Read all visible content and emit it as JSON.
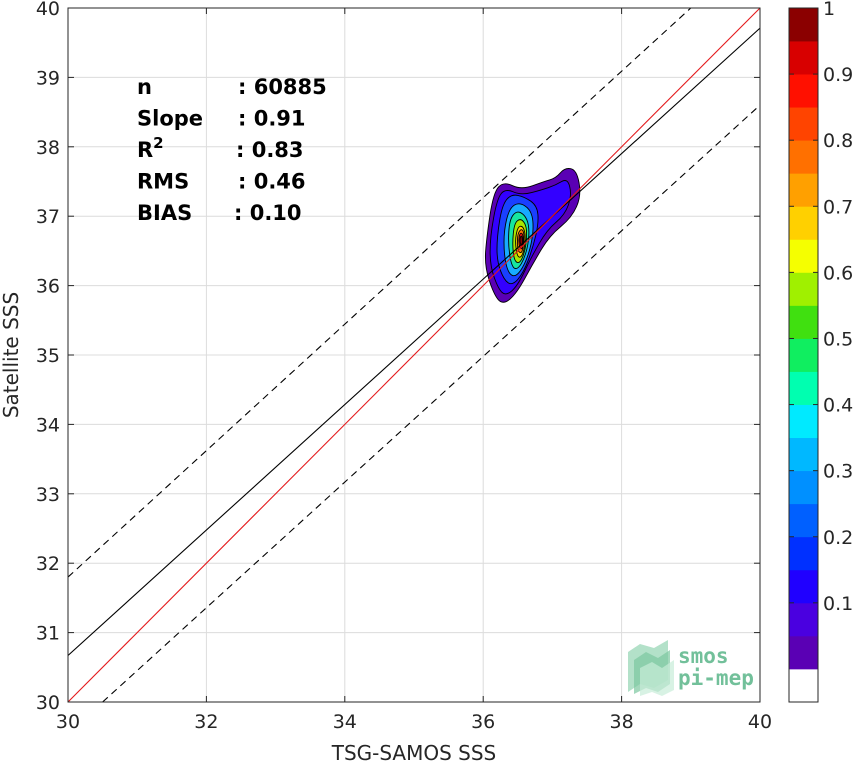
{
  "chart_data": {
    "type": "scatter",
    "subtype": "density-contour",
    "xlabel": "TSG-SAMOS SSS",
    "ylabel": "Satellite SSS",
    "xlim": [
      30,
      40
    ],
    "ylim": [
      30,
      40
    ],
    "xticks": [
      30,
      32,
      34,
      36,
      38,
      40
    ],
    "yticks": [
      30,
      31,
      32,
      33,
      34,
      35,
      36,
      37,
      38,
      39,
      40
    ],
    "grid": true,
    "stats": [
      {
        "label": "n",
        "value": ": 60885"
      },
      {
        "label": "Slope",
        "value": ": 0.91"
      },
      {
        "label": "R",
        "sup": "2",
        "value": ": 0.83"
      },
      {
        "label": "RMS",
        "value": ": 0.46"
      },
      {
        "label": "BIAS",
        "value": ": 0.10"
      }
    ],
    "lines": {
      "one_to_one": {
        "color": "#e41a1c",
        "x": [
          30,
          40
        ],
        "y": [
          30,
          40
        ]
      },
      "regression": {
        "color": "#000000",
        "x": [
          30,
          40
        ],
        "y": [
          30.67,
          39.71
        ]
      },
      "upper_bound": {
        "color": "#000000",
        "dash": true,
        "x": [
          30,
          39
        ],
        "y": [
          31.8,
          40
        ]
      },
      "lower_bound": {
        "color": "#000000",
        "dash": true,
        "x": [
          30.5,
          40
        ],
        "y": [
          30,
          38.6
        ]
      }
    },
    "density": {
      "center": [
        36.57,
        36.62
      ],
      "levels": [
        0.05,
        0.1,
        0.15,
        0.2,
        0.25,
        0.3,
        0.35,
        0.4,
        0.45,
        0.5,
        0.55,
        0.6,
        0.65,
        0.7,
        0.75,
        0.8,
        0.85,
        0.9,
        0.95
      ],
      "contours": [
        {
          "level": 0.05,
          "color": "#5a00b4",
          "points": [
            [
              36.15,
              35.88
            ],
            [
              36.28,
              35.72
            ],
            [
              36.48,
              35.88
            ],
            [
              36.72,
              36.32
            ],
            [
              36.96,
              36.72
            ],
            [
              37.28,
              36.98
            ],
            [
              37.42,
              37.3
            ],
            [
              37.35,
              37.67
            ],
            [
              37.18,
              37.7
            ],
            [
              37.05,
              37.55
            ],
            [
              36.88,
              37.5
            ],
            [
              36.55,
              37.38
            ],
            [
              36.3,
              37.5
            ],
            [
              36.15,
              37.35
            ],
            [
              36.05,
              36.7
            ],
            [
              36.02,
              36.28
            ]
          ]
        },
        {
          "level": 0.1,
          "color": "#3300ff",
          "points": [
            [
              36.22,
              35.95
            ],
            [
              36.33,
              35.85
            ],
            [
              36.5,
              36.0
            ],
            [
              36.7,
              36.42
            ],
            [
              36.92,
              36.8
            ],
            [
              37.18,
              37.02
            ],
            [
              37.28,
              37.3
            ],
            [
              37.22,
              37.55
            ],
            [
              37.05,
              37.45
            ],
            [
              36.85,
              37.38
            ],
            [
              36.55,
              37.3
            ],
            [
              36.32,
              37.4
            ],
            [
              36.2,
              37.25
            ],
            [
              36.1,
              36.7
            ],
            [
              36.1,
              36.28
            ]
          ]
        },
        {
          "level": 0.15,
          "color": "#1a40ff",
          "points": [
            [
              36.3,
              36.08
            ],
            [
              36.42,
              36.0
            ],
            [
              36.58,
              36.18
            ],
            [
              36.72,
              36.55
            ],
            [
              36.8,
              36.9
            ],
            [
              36.78,
              37.15
            ],
            [
              36.6,
              37.28
            ],
            [
              36.4,
              37.32
            ],
            [
              36.27,
              37.15
            ],
            [
              36.2,
              36.7
            ],
            [
              36.2,
              36.35
            ]
          ]
        },
        {
          "level": 0.3,
          "color": "#18aaff",
          "points": [
            [
              36.36,
              36.18
            ],
            [
              36.47,
              36.12
            ],
            [
              36.6,
              36.3
            ],
            [
              36.7,
              36.6
            ],
            [
              36.73,
              36.9
            ],
            [
              36.68,
              37.1
            ],
            [
              36.52,
              37.2
            ],
            [
              36.38,
              37.12
            ],
            [
              36.3,
              36.8
            ],
            [
              36.3,
              36.45
            ]
          ]
        },
        {
          "level": 0.45,
          "color": "#17e6a0",
          "points": [
            [
              36.41,
              36.27
            ],
            [
              36.5,
              36.23
            ],
            [
              36.6,
              36.4
            ],
            [
              36.66,
              36.65
            ],
            [
              36.66,
              36.88
            ],
            [
              36.6,
              37.02
            ],
            [
              36.48,
              37.08
            ],
            [
              36.38,
              36.95
            ],
            [
              36.36,
              36.6
            ]
          ]
        },
        {
          "level": 0.6,
          "color": "#a8e600",
          "points": [
            [
              36.45,
              36.35
            ],
            [
              36.53,
              36.32
            ],
            [
              36.6,
              36.48
            ],
            [
              36.63,
              36.7
            ],
            [
              36.62,
              36.88
            ],
            [
              36.54,
              36.97
            ],
            [
              36.45,
              36.9
            ],
            [
              36.42,
              36.6
            ]
          ]
        },
        {
          "level": 0.7,
          "color": "#ffd000",
          "points": [
            [
              36.49,
              36.42
            ],
            [
              36.55,
              36.4
            ],
            [
              36.6,
              36.55
            ],
            [
              36.61,
              36.75
            ],
            [
              36.57,
              36.86
            ],
            [
              36.5,
              36.85
            ],
            [
              36.46,
              36.65
            ]
          ]
        },
        {
          "level": 0.8,
          "color": "#ff7a00",
          "points": [
            [
              36.51,
              36.48
            ],
            [
              36.56,
              36.47
            ],
            [
              36.59,
              36.62
            ],
            [
              36.59,
              36.77
            ],
            [
              36.55,
              36.82
            ],
            [
              36.5,
              36.75
            ],
            [
              36.49,
              36.6
            ]
          ]
        },
        {
          "level": 0.9,
          "color": "#e81010",
          "points": [
            [
              36.53,
              36.53
            ],
            [
              36.57,
              36.53
            ],
            [
              36.58,
              36.66
            ],
            [
              36.57,
              36.75
            ],
            [
              36.53,
              36.76
            ],
            [
              36.51,
              36.65
            ]
          ]
        },
        {
          "level": 1.0,
          "color": "#8b0000",
          "points": [
            [
              36.545,
              36.58
            ],
            [
              36.565,
              36.58
            ],
            [
              36.57,
              36.67
            ],
            [
              36.555,
              36.72
            ],
            [
              36.535,
              36.7
            ],
            [
              36.53,
              36.63
            ]
          ]
        }
      ]
    },
    "colorbar": {
      "range": [
        0,
        1
      ],
      "ticks": [
        "0.1",
        "0.2",
        "0.3",
        "0.4",
        "0.5",
        "0.6",
        "0.7",
        "0.8",
        "0.9",
        "1"
      ],
      "tick_values": [
        0.1,
        0.2,
        0.3,
        0.4,
        0.5,
        0.6,
        0.7,
        0.8,
        0.9,
        1.0
      ],
      "bins": [
        "#ffffff",
        "#5a00b4",
        "#4a00e0",
        "#2000ff",
        "#0030ff",
        "#0060ff",
        "#0090ff",
        "#00b8ff",
        "#00eaff",
        "#00ffb0",
        "#10ee60",
        "#40e010",
        "#a0f000",
        "#f5ff00",
        "#ffd000",
        "#ffa000",
        "#ff7000",
        "#ff4400",
        "#ff1000",
        "#d80000",
        "#8b0000"
      ]
    }
  },
  "logo": {
    "line1": "smos",
    "line2": "pi-mep",
    "color": "#72c09a"
  }
}
